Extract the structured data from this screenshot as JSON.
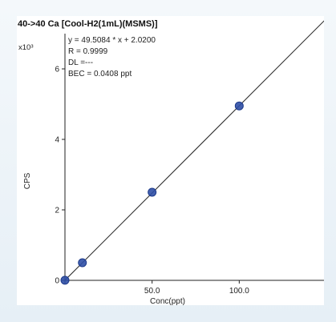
{
  "chart_data": {
    "type": "scatter",
    "title": "40->40 Ca [Cool-H2(1mL)(MSMS)]",
    "xlabel": "Conc(ppt)",
    "ylabel": "CPS",
    "y_multiplier": "x10³",
    "xlim": [
      0,
      150
    ],
    "ylim": [
      0,
      7
    ],
    "x_ticks": [
      0,
      50,
      100
    ],
    "x_tick_labels": [
      "",
      "50.0",
      "100.0"
    ],
    "y_ticks": [
      0,
      2,
      4,
      6
    ],
    "y_tick_labels": [
      "0",
      "2",
      "4",
      "6"
    ],
    "grid": false,
    "series": [
      {
        "x": [
          0,
          10,
          50,
          100
        ],
        "y": [
          0.002,
          0.5,
          2.5,
          4.95
        ]
      }
    ],
    "fit": {
      "slope": 49.5084,
      "intercept": 2.02,
      "x_end": 150
    },
    "annotations": {
      "equation": "y = 49.5084 * x + 2.0200",
      "r_value": "R = 0.9999",
      "dl": "DL =---",
      "bec": "BEC = 0.0408 ppt"
    },
    "colors": {
      "point": "#2f4fa6",
      "point_stroke": "#1d3a8a",
      "line": "#222222",
      "panel": "#ffffff",
      "background": "#eef4f9"
    }
  }
}
